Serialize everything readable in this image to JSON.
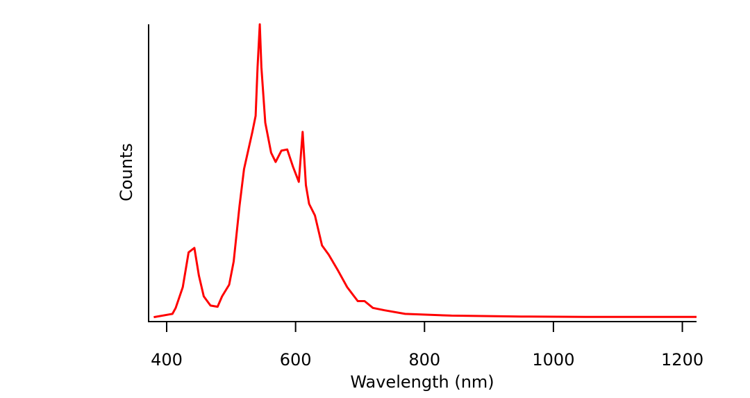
{
  "chart_data": {
    "type": "line",
    "title": "",
    "xlabel": "Wavelength (nm)",
    "ylabel": "Counts",
    "xlim": [
      372,
      1222
    ],
    "ylim": [
      0,
      100
    ],
    "xticks": [
      400,
      600,
      800,
      1000,
      1200
    ],
    "xtick_labels": [
      "400",
      "600",
      "800",
      "1000",
      "1200"
    ],
    "yticks": [],
    "grid": false,
    "legend": "none",
    "series": [
      {
        "color": "#ff0000",
        "x": [
          380,
          404,
          409,
          414,
          425,
          434,
          443,
          450,
          457.5,
          468,
          479,
          486,
          497,
          504,
          513,
          520,
          533,
          538,
          541,
          544.5,
          547,
          553,
          562,
          569,
          578,
          587,
          596,
          605,
          611,
          616,
          621,
          630,
          641,
          651.5,
          666,
          680,
          696.5,
          707,
          720,
          738,
          770,
          842,
          950,
          1050,
          1150,
          1222
        ],
        "y": [
          1.5,
          2.4,
          2.6,
          4.6,
          11.6,
          23.3,
          24.8,
          15.5,
          8.5,
          5.4,
          5.0,
          8.5,
          12.4,
          20.2,
          38.9,
          51.3,
          63.8,
          69.2,
          85.6,
          100,
          85.6,
          66.9,
          56.8,
          53.7,
          57.5,
          57.9,
          52.1,
          47.0,
          63.8,
          45.9,
          39.6,
          35.7,
          25.6,
          22.5,
          17.1,
          11.6,
          6.9,
          6.9,
          4.6,
          3.8,
          2.6,
          2.0,
          1.7,
          1.6,
          1.6,
          1.6
        ]
      }
    ]
  }
}
